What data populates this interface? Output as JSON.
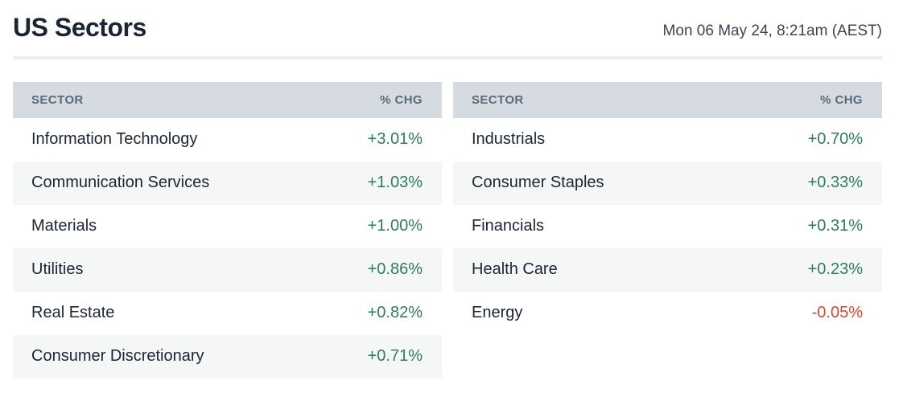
{
  "header": {
    "title": "US Sectors",
    "timestamp": "Mon 06 May 24, 8:21am (AEST)"
  },
  "columns": {
    "sector": "SECTOR",
    "chg": "% CHG"
  },
  "tables": {
    "left": {
      "rows": [
        {
          "sector": "Information Technology",
          "chg": "+3.01%"
        },
        {
          "sector": "Communication Services",
          "chg": "+1.03%"
        },
        {
          "sector": "Materials",
          "chg": "+1.00%"
        },
        {
          "sector": "Utilities",
          "chg": "+0.86%"
        },
        {
          "sector": "Real Estate",
          "chg": "+0.82%"
        },
        {
          "sector": "Consumer Discretionary",
          "chg": "+0.71%"
        }
      ]
    },
    "right": {
      "rows": [
        {
          "sector": "Industrials",
          "chg": "+0.70%"
        },
        {
          "sector": "Consumer Staples",
          "chg": "+0.33%"
        },
        {
          "sector": "Financials",
          "chg": "+0.31%"
        },
        {
          "sector": "Health Care",
          "chg": "+0.23%"
        },
        {
          "sector": "Energy",
          "chg": "-0.05%"
        }
      ]
    }
  },
  "colors": {
    "positive": "#2f7d5a",
    "negative": "#dc4630",
    "header_bg": "#d5dbe1",
    "row_stripe": "#f5f7f6",
    "divider": "#e9eef6",
    "title_text": "#1a2434"
  }
}
